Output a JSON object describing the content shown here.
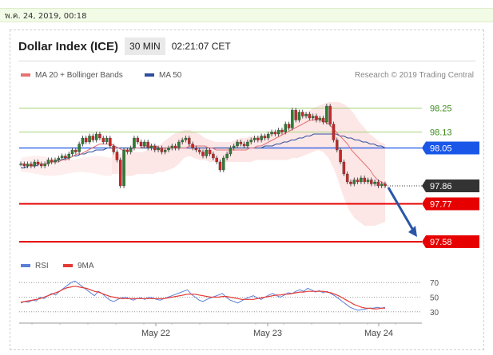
{
  "date_stamp": "พ.ค. 24, 2019, 00:18",
  "header": {
    "title": "Dollar Index (ICE)",
    "timeframe": "30 MIN",
    "time": "02:21:07 CET"
  },
  "legend": {
    "ma20": "MA 20 + Bollinger Bands",
    "ma50": "MA 50",
    "credit": "Research © 2019 Trading Central",
    "rsi": "RSI",
    "ma9": "9MA"
  },
  "colors": {
    "up": "#2e7d32",
    "down": "#c62828",
    "ma20": "#e57373",
    "ma50": "#2e4e9c",
    "rsi": "#5b7fd6",
    "rsi_ma": "#e53935",
    "band": "#fde3e3",
    "resistance": "#a5d37a",
    "pivot": "#1a56e8",
    "support": "#e60000",
    "last": "#333333"
  },
  "chart_data": [
    {
      "type": "candlestick",
      "x_tick_labels": [
        "May 22",
        "May 23",
        "May 24"
      ],
      "ylim": [
        97.52,
        98.36
      ],
      "levels": [
        {
          "label": "98.25",
          "value": 98.25,
          "kind": "resistance"
        },
        {
          "label": "98.13",
          "value": 98.13,
          "kind": "resistance"
        },
        {
          "label": "98.05",
          "value": 98.05,
          "kind": "pivot"
        },
        {
          "label": "97.86",
          "value": 97.86,
          "kind": "last"
        },
        {
          "label": "97.77",
          "value": 97.77,
          "kind": "support"
        },
        {
          "label": "97.58",
          "value": 97.58,
          "kind": "support"
        }
      ],
      "close": [
        97.97,
        97.96,
        97.97,
        97.96,
        97.98,
        97.97,
        97.96,
        97.97,
        97.99,
        97.98,
        97.99,
        98.0,
        98.01,
        98.0,
        98.02,
        98.04,
        98.03,
        98.07,
        98.1,
        98.08,
        98.11,
        98.09,
        98.12,
        98.1,
        98.08,
        98.1,
        98.06,
        98.03,
        97.99,
        97.86,
        98.04,
        98.03,
        98.05,
        98.1,
        98.08,
        98.06,
        98.08,
        98.05,
        98.06,
        98.04,
        98.05,
        98.03,
        98.04,
        98.05,
        98.06,
        98.05,
        98.08,
        98.09,
        98.1,
        98.07,
        98.05,
        98.04,
        98.03,
        98.01,
        98.04,
        98.02,
        98.0,
        97.98,
        97.94,
        98.0,
        98.02,
        98.05,
        98.06,
        98.08,
        98.07,
        98.06,
        98.08,
        98.09,
        98.1,
        98.09,
        98.11,
        98.1,
        98.12,
        98.13,
        98.12,
        98.14,
        98.13,
        98.17,
        98.15,
        98.24,
        98.19,
        98.23,
        98.21,
        98.22,
        98.2,
        98.21,
        98.19,
        98.2,
        98.18,
        98.26,
        98.17,
        98.09,
        98.04,
        97.98,
        97.92,
        97.88,
        97.87,
        97.89,
        97.88,
        97.9,
        97.88,
        97.89,
        97.87,
        97.88,
        97.86,
        97.87,
        97.86
      ],
      "ma20": [
        97.97,
        97.97,
        97.96,
        97.96,
        97.97,
        97.97,
        97.97,
        97.97,
        97.98,
        97.98,
        97.98,
        97.99,
        97.99,
        98.0,
        98.01,
        98.02,
        98.02,
        98.03,
        98.04,
        98.05,
        98.06,
        98.07,
        98.07,
        98.07,
        98.07,
        98.06,
        98.05,
        98.04,
        98.04,
        98.04,
        98.05,
        98.05,
        98.05,
        98.06,
        98.06,
        98.06,
        98.06,
        98.05,
        98.05,
        98.05,
        98.05,
        98.05,
        98.05,
        98.05,
        98.05,
        98.06,
        98.06,
        98.06,
        98.06,
        98.06,
        98.05,
        98.05,
        98.04,
        98.04,
        98.04,
        98.04,
        98.04,
        98.04,
        98.04,
        98.04,
        98.04,
        98.05,
        98.05,
        98.06,
        98.06,
        98.07,
        98.08,
        98.09,
        98.1,
        98.11,
        98.12,
        98.13,
        98.14,
        98.15,
        98.16,
        98.17,
        98.18,
        98.19,
        98.19,
        98.2,
        98.19,
        98.18,
        98.17,
        98.15,
        98.13,
        98.11,
        98.09,
        98.07,
        98.04,
        98.02,
        98.0,
        97.98,
        97.96,
        97.94,
        97.91,
        97.89,
        97.88,
        97.87
      ],
      "ma50": [
        97.95,
        97.95,
        97.96,
        97.96,
        97.96,
        97.97,
        97.97,
        97.97,
        97.98,
        97.98,
        97.99,
        97.99,
        98.0,
        98.0,
        98.01,
        98.01,
        98.02,
        98.02,
        98.03,
        98.03,
        98.04,
        98.04,
        98.04,
        98.05,
        98.05,
        98.05,
        98.05,
        98.05,
        98.05,
        98.05,
        98.05,
        98.05,
        98.05,
        98.05,
        98.05,
        98.05,
        98.05,
        98.05,
        98.05,
        98.05,
        98.05,
        98.05,
        98.05,
        98.05,
        98.05,
        98.05,
        98.05,
        98.05,
        98.05,
        98.05,
        98.05,
        98.05,
        98.05,
        98.05,
        98.05,
        98.05,
        98.05,
        98.05,
        98.05,
        98.05,
        98.05,
        98.05,
        98.05,
        98.05,
        98.05,
        98.06,
        98.06,
        98.06,
        98.07,
        98.07,
        98.08,
        98.08,
        98.09,
        98.09,
        98.1,
        98.1,
        98.11,
        98.11,
        98.12,
        98.12,
        98.12,
        98.12,
        98.12,
        98.12,
        98.12,
        98.11,
        98.11,
        98.1,
        98.1,
        98.09,
        98.09,
        98.08,
        98.08,
        98.07,
        98.07,
        98.06,
        98.06,
        98.05
      ],
      "band_upper": [
        98.02,
        98.02,
        98.02,
        98.02,
        98.03,
        98.03,
        98.03,
        98.04,
        98.05,
        98.06,
        98.08,
        98.1,
        98.12,
        98.13,
        98.14,
        98.14,
        98.13,
        98.12,
        98.1,
        98.09,
        98.08,
        98.08,
        98.08,
        98.08,
        98.09,
        98.1,
        98.1,
        98.11,
        98.11,
        98.11,
        98.12,
        98.12,
        98.13,
        98.14,
        98.15,
        98.17,
        98.19,
        98.21,
        98.23,
        98.25,
        98.26,
        98.27,
        98.28,
        98.28,
        98.28,
        98.27,
        98.25,
        98.22,
        98.18,
        98.15,
        98.12,
        98.1,
        98.08,
        98.07
      ],
      "band_lower": [
        97.92,
        97.92,
        97.91,
        97.91,
        97.91,
        97.92,
        97.92,
        97.92,
        97.92,
        97.93,
        97.93,
        97.94,
        97.95,
        97.97,
        98.0,
        98.01,
        98.0,
        97.99,
        97.99,
        97.98,
        97.98,
        97.98,
        97.98,
        97.98,
        97.98,
        97.98,
        97.98,
        97.98,
        97.99,
        97.99,
        97.99,
        97.99,
        97.99,
        97.99,
        97.99,
        98.0,
        98.0,
        98.01,
        98.02,
        98.03,
        98.04,
        98.03,
        98.0,
        97.95,
        97.88,
        97.8,
        97.74,
        97.7,
        97.68,
        97.66,
        97.66,
        97.66,
        97.67,
        97.68
      ]
    },
    {
      "type": "line",
      "name": "RSI",
      "y_tick_labels": [
        "70",
        "50",
        "30"
      ],
      "ylim": [
        20,
        80
      ],
      "rsi": [
        42,
        44,
        43,
        46,
        45,
        50,
        48,
        52,
        55,
        53,
        58,
        62,
        66,
        70,
        72,
        68,
        64,
        60,
        56,
        52,
        58,
        55,
        50,
        46,
        44,
        47,
        49,
        50,
        48,
        46,
        48,
        49,
        47,
        50,
        49,
        47,
        46,
        48,
        50,
        52,
        54,
        56,
        58,
        60,
        54,
        50,
        46,
        44,
        47,
        49,
        51,
        53,
        55,
        50,
        46,
        44,
        42,
        45,
        48,
        50,
        52,
        49,
        47,
        50,
        53,
        55,
        52,
        50,
        53,
        56,
        55,
        58,
        60,
        58,
        62,
        60,
        57,
        59,
        56,
        58,
        55,
        52,
        48,
        44,
        40,
        36,
        34,
        32,
        33,
        34,
        35,
        35,
        36,
        35,
        36
      ],
      "ma9": [
        43,
        44,
        45,
        46,
        47,
        48,
        50,
        52,
        54,
        56,
        58,
        61,
        63,
        64,
        65,
        64,
        63,
        62,
        60,
        58,
        57,
        55,
        53,
        51,
        50,
        49,
        48,
        48,
        48,
        48,
        48,
        48,
        48,
        48,
        48,
        48,
        48,
        48,
        49,
        50,
        51,
        52,
        53,
        54,
        54,
        54,
        53,
        52,
        51,
        50,
        50,
        50,
        51,
        51,
        50,
        49,
        48,
        47,
        47,
        47,
        47,
        48,
        49,
        50,
        51,
        52,
        53,
        53,
        54,
        54,
        55,
        56,
        57,
        57,
        58,
        58,
        58,
        58,
        58,
        57,
        56,
        54,
        52,
        49,
        46,
        43,
        40,
        38,
        36,
        35,
        35,
        34,
        34,
        35,
        35
      ]
    }
  ]
}
